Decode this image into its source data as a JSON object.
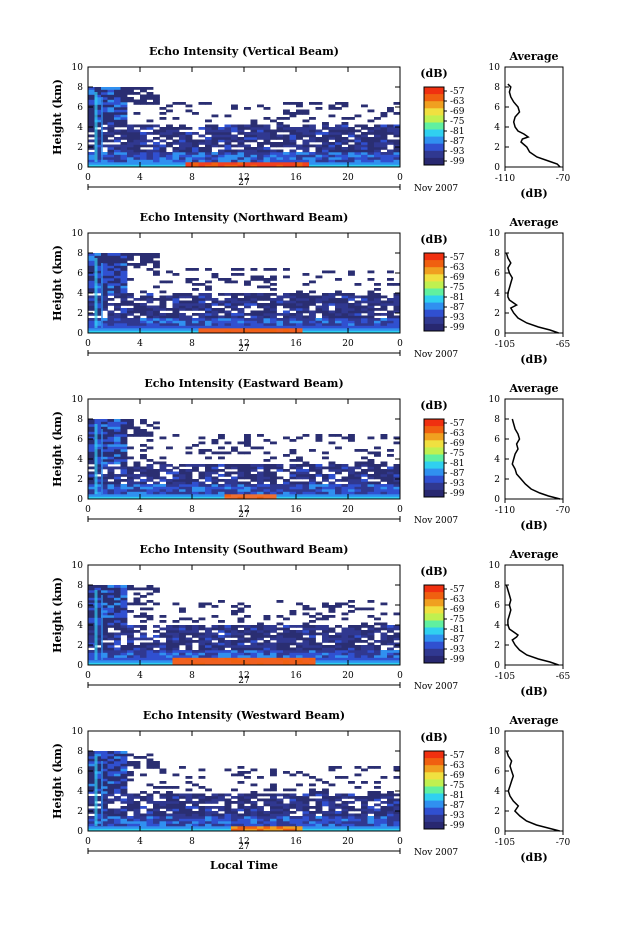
{
  "chart_data": [
    {
      "type": "heatmap",
      "title": "Echo Intensity (Vertical Beam)",
      "ylabel": "Height (km)",
      "ylim": [
        0,
        10
      ],
      "xlim": [
        0,
        24
      ],
      "xticks": [
        "0",
        "4",
        "8",
        "12",
        "16",
        "20",
        "0"
      ],
      "yticks": [
        "0",
        "2",
        "4",
        "6",
        "8",
        "10"
      ],
      "date_day": "27",
      "date_month_year": "Nov 2007",
      "colorbar": {
        "unit": "(dB)",
        "ticks": [
          "-57",
          "-63",
          "-69",
          "-75",
          "-81",
          "-87",
          "-93",
          "-99"
        ]
      },
      "profile": {
        "title": "Average",
        "xlabel": "(dB)",
        "xlim": [
          -110,
          -70
        ],
        "xticks": [
          "-110",
          "-70"
        ],
        "yticks": [
          "0",
          "2",
          "4",
          "6",
          "8",
          "10"
        ],
        "height_km": [
          0,
          0.3,
          0.6,
          1,
          1.5,
          2,
          2.5,
          2.8,
          3,
          3.3,
          3.6,
          4,
          4.5,
          5,
          5.5,
          6,
          6.5,
          7,
          7.5,
          8,
          8.3
        ],
        "db": [
          -72,
          -74,
          -80,
          -88,
          -93,
          -95,
          -99,
          -98,
          -94,
          -97,
          -101,
          -103,
          -104,
          -103,
          -100,
          -101,
          -104,
          -106,
          -107,
          -106,
          -108
        ]
      },
      "data": {
        "bottom_band_top_km": 0.5,
        "layer_top_km": 4.2,
        "hot_core": [
          7.2,
          16.8
        ],
        "hot_core_height_km": 0.4,
        "hot_color": "#f04020"
      }
    },
    {
      "type": "heatmap",
      "title": "Echo Intensity (Northward Beam)",
      "ylabel": "Height (km)",
      "ylim": [
        0,
        10
      ],
      "xlim": [
        0,
        24
      ],
      "xticks": [
        "0",
        "4",
        "8",
        "12",
        "16",
        "20",
        "0"
      ],
      "yticks": [
        "0",
        "2",
        "4",
        "6",
        "8",
        "10"
      ],
      "date_day": "27",
      "date_month_year": "Nov 2007",
      "colorbar": {
        "unit": "(dB)",
        "ticks": [
          "-57",
          "-63",
          "-69",
          "-75",
          "-81",
          "-87",
          "-93",
          "-99"
        ]
      },
      "profile": {
        "title": "Average",
        "xlabel": "(dB)",
        "xlim": [
          -105,
          -65
        ],
        "xticks": [
          "-105",
          "-65"
        ],
        "yticks": [
          "0",
          "2",
          "4",
          "6",
          "8",
          "10"
        ],
        "height_km": [
          0,
          0.3,
          0.6,
          1,
          1.5,
          2,
          2.5,
          2.8,
          3,
          3.3,
          3.6,
          4,
          4.5,
          5,
          5.5,
          6,
          6.5,
          7,
          7.5,
          8
        ],
        "db": [
          -68,
          -74,
          -82,
          -90,
          -96,
          -99,
          -101,
          -97,
          -99,
          -102,
          -103,
          -103,
          -102,
          -101,
          -100,
          -102,
          -103,
          -101,
          -103,
          -104
        ]
      },
      "data": {
        "bottom_band_top_km": 0.7,
        "layer_top_km": 3.8,
        "hot_core": [
          8.5,
          16.0
        ],
        "hot_core_height_km": 0.5,
        "hot_color": "#f06020"
      }
    },
    {
      "type": "heatmap",
      "title": "Echo Intensity (Eastward Beam)",
      "ylabel": "Height (km)",
      "ylim": [
        0,
        10
      ],
      "xlim": [
        0,
        24
      ],
      "xticks": [
        "0",
        "4",
        "8",
        "12",
        "16",
        "20",
        "0"
      ],
      "yticks": [
        "0",
        "2",
        "4",
        "6",
        "8",
        "10"
      ],
      "date_day": "27",
      "date_month_year": "Nov 2007",
      "colorbar": {
        "unit": "(dB)",
        "ticks": [
          "-57",
          "-63",
          "-69",
          "-75",
          "-81",
          "-87",
          "-93",
          "-99"
        ]
      },
      "profile": {
        "title": "Average",
        "xlabel": "(dB)",
        "xlim": [
          -110,
          -70
        ],
        "xticks": [
          "-110",
          "-70"
        ],
        "yticks": [
          "0",
          "2",
          "4",
          "6",
          "8",
          "10"
        ],
        "height_km": [
          0,
          0.3,
          0.6,
          1,
          1.5,
          2,
          2.5,
          3,
          3.5,
          4,
          4.5,
          5,
          5.5,
          6,
          6.5,
          7,
          7.5,
          8
        ],
        "db": [
          -72,
          -80,
          -86,
          -92,
          -96,
          -99,
          -102,
          -103,
          -105,
          -104,
          -103,
          -101,
          -102,
          -100,
          -101,
          -103,
          -104,
          -105
        ]
      },
      "data": {
        "bottom_band_top_km": 0.5,
        "layer_top_km": 3.4,
        "hot_core": [
          10.5,
          14.0
        ],
        "hot_core_height_km": 0.3,
        "hot_color": "#f07030"
      }
    },
    {
      "type": "heatmap",
      "title": "Echo Intensity (Southward Beam)",
      "ylabel": "Height (km)",
      "ylim": [
        0,
        10
      ],
      "xlim": [
        0,
        24
      ],
      "xticks": [
        "0",
        "4",
        "8",
        "12",
        "16",
        "20",
        "0"
      ],
      "yticks": [
        "0",
        "2",
        "4",
        "6",
        "8",
        "10"
      ],
      "date_day": "27",
      "date_month_year": "Nov 2007",
      "colorbar": {
        "unit": "(dB)",
        "ticks": [
          "-57",
          "-63",
          "-69",
          "-75",
          "-81",
          "-87",
          "-93",
          "-99"
        ]
      },
      "profile": {
        "title": "Average",
        "xlabel": "(dB)",
        "xlim": [
          -105,
          -65
        ],
        "xticks": [
          "-105",
          "-65"
        ],
        "yticks": [
          "0",
          "2",
          "4",
          "6",
          "8",
          "10"
        ],
        "height_km": [
          0,
          0.3,
          0.6,
          1,
          1.5,
          2,
          2.5,
          2.8,
          3,
          3.3,
          3.6,
          4,
          4.5,
          5,
          5.5,
          6,
          6.5,
          7,
          7.5,
          8
        ],
        "db": [
          -68,
          -74,
          -82,
          -90,
          -95,
          -98,
          -100,
          -97,
          -96,
          -99,
          -102,
          -103,
          -103,
          -102,
          -101,
          -102,
          -101,
          -102,
          -103,
          -104
        ]
      },
      "data": {
        "bottom_band_top_km": 0.7,
        "layer_top_km": 4.0,
        "hot_core": [
          6.5,
          17.0
        ],
        "hot_core_height_km": 0.6,
        "hot_color": "#f06020"
      }
    },
    {
      "type": "heatmap",
      "title": "Echo Intensity (Westward Beam)",
      "ylabel": "Height (km)",
      "xlabel": "Local Time",
      "ylim": [
        0,
        10
      ],
      "xlim": [
        0,
        24
      ],
      "xticks": [
        "0",
        "4",
        "8",
        "12",
        "16",
        "20",
        "0"
      ],
      "yticks": [
        "0",
        "2",
        "4",
        "6",
        "8",
        "10"
      ],
      "date_day": "27",
      "date_month_year": "Nov 2007",
      "colorbar": {
        "unit": "(dB)",
        "ticks": [
          "-57",
          "-63",
          "-69",
          "-75",
          "-81",
          "-87",
          "-93",
          "-99"
        ]
      },
      "profile": {
        "title": "Average",
        "xlabel": "(dB)",
        "xlim": [
          -105,
          -70
        ],
        "xticks": [
          "-105",
          "-70"
        ],
        "yticks": [
          "0",
          "2",
          "4",
          "6",
          "8",
          "10"
        ],
        "height_km": [
          0,
          0.3,
          0.6,
          1,
          1.5,
          2,
          2.5,
          3,
          3.5,
          4,
          4.5,
          5,
          5.5,
          6,
          6.5,
          7,
          7.5,
          8
        ],
        "db": [
          -72,
          -79,
          -86,
          -92,
          -96,
          -99,
          -97,
          -100,
          -102,
          -103,
          -102,
          -101,
          -100,
          -101,
          -102,
          -101,
          -103,
          -104
        ]
      },
      "data": {
        "bottom_band_top_km": 0.5,
        "layer_top_km": 3.6,
        "hot_core": [
          11.0,
          16.0
        ],
        "hot_core_height_km": 0.3,
        "hot_color": "#f0a020"
      }
    }
  ],
  "colors": {
    "colorbar_scale": [
      "#f03010",
      "#f06010",
      "#f0a020",
      "#f0e040",
      "#c0f050",
      "#60f0a0",
      "#30d0f0",
      "#3090f0",
      "#3050d0",
      "#303890",
      "#282870"
    ],
    "noise_floor": "#2a2e72"
  }
}
